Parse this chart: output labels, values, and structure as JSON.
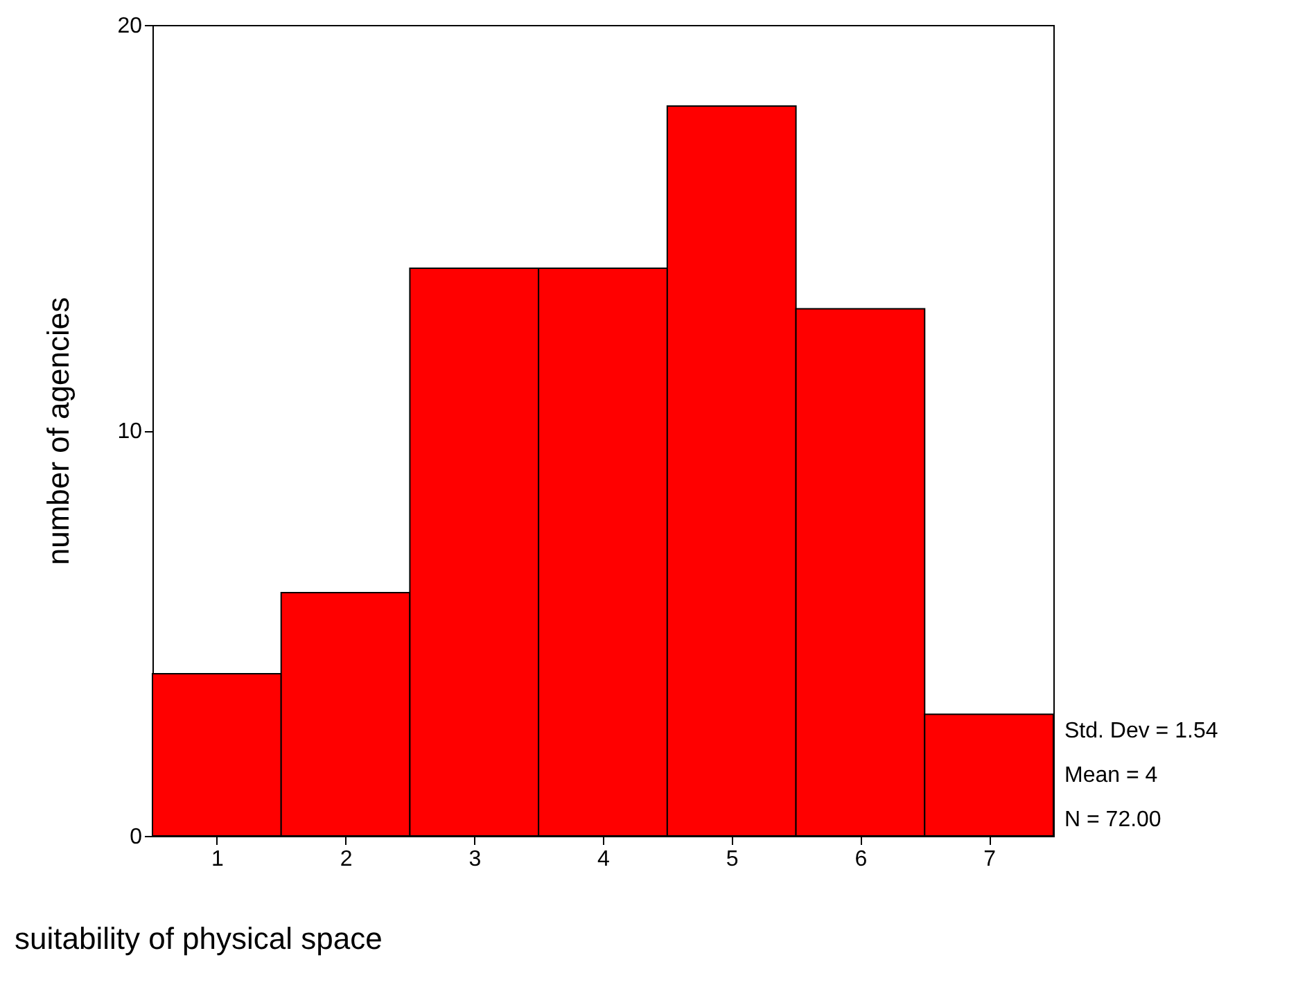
{
  "chart_data": {
    "type": "histogram",
    "bins": [
      0.5,
      1.5,
      2.5,
      3.5,
      4.5,
      5.5,
      6.5,
      7.5
    ],
    "values": [
      4,
      6,
      14,
      14,
      18,
      13,
      3
    ],
    "color": "#ff0000",
    "xlim": [
      0.5,
      7.5
    ],
    "xticks": [
      1,
      2,
      3,
      4,
      5,
      6,
      7
    ],
    "ylim": [
      0,
      20
    ],
    "yticks": [
      0,
      10,
      20
    ],
    "xlabel": "suitability of physical space",
    "ylabel": "number of agencies",
    "annotations": [
      "Std. Dev = 1.54",
      "Mean = 4",
      "N = 72.00"
    ],
    "grid": false
  }
}
